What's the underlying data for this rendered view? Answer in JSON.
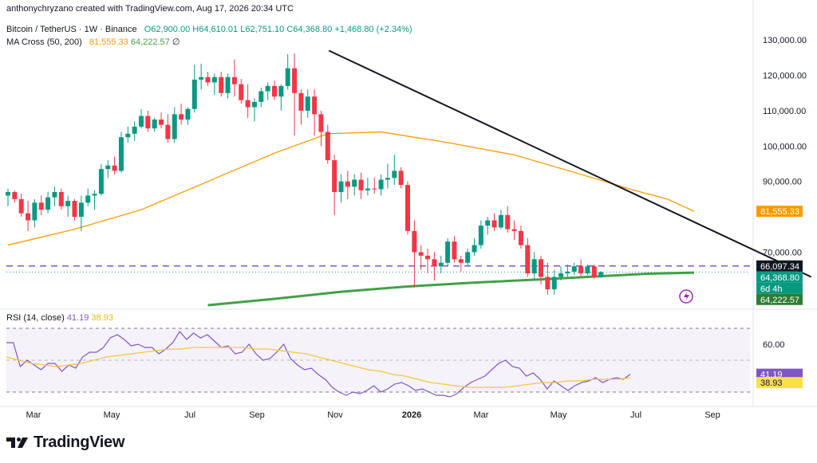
{
  "author": "anthonychryzano created with TradingView.com, Aug 17, 2026 20:34 UTC",
  "legend": {
    "symbol": "Bitcoin / TetherUS · 1W · Binance",
    "ohlc": {
      "o": "O62,900.00",
      "h": "H64,610.01",
      "l": "L62,751.10",
      "c": "C64,368.80",
      "chg": "+1,468.80 (+2.34%)"
    },
    "ma_title": "MA Cross (50, 200)",
    "ma_fast": "81,555.33",
    "ma_slow": "64,222.57",
    "ma_extra": "∅"
  },
  "rsi_legend": {
    "title": "RSI (14, close)",
    "value": "41.19",
    "ma": "38.93"
  },
  "price_axis": {
    "ticks": [
      "130,000.00",
      "120,000.00",
      "110,000.00",
      "100,000.00",
      "90,000.00",
      "70,000.00"
    ],
    "tick_values": [
      130000,
      120000,
      110000,
      100000,
      90000,
      70000
    ],
    "tags": [
      {
        "label": "81,555.33",
        "value": 81555.33,
        "color": "#ff9800"
      },
      {
        "label": "66,097.34",
        "value": 66097.34,
        "color": "#131722"
      },
      {
        "label": "64,368.80",
        "value": 64368.8,
        "color": "#089981"
      },
      {
        "label": "6d 4h",
        "value": 64368.8,
        "color": "#089981",
        "sub": true
      },
      {
        "label": "64,222.57",
        "value": 64222.57,
        "color": "#2e7d32"
      }
    ]
  },
  "rsi_axis": {
    "ticks": [
      "60.00"
    ],
    "tick_values": [
      60
    ],
    "tags": [
      {
        "label": "41.19",
        "value": 41.19,
        "color": "#7e57c2"
      },
      {
        "label": "38.93",
        "value": 38.93,
        "color": "#f9e04b",
        "dark_text": true
      }
    ]
  },
  "time_axis": [
    "Mar",
    "May",
    "Jul",
    "Sep",
    "Nov",
    "2026",
    "Mar",
    "May",
    "Jul",
    "Sep"
  ],
  "brand": "TradingView",
  "colors": {
    "up": "#089981",
    "down": "#f23645",
    "ma50": "#ff9800",
    "ma200": "#43a047",
    "rsi": "#7e57c2",
    "rsi_ma": "#f5c542",
    "trendline": "#131722",
    "hline": "#7e57c2"
  },
  "chart_data": {
    "type": "candlestick",
    "title": "Bitcoin / TetherUS · 1W · Binance",
    "ylim": [
      55000,
      135000
    ],
    "horizontal_line": 66097.34,
    "trendline": {
      "from": {
        "index": 49,
        "price": 127000
      },
      "to": {
        "index": 122,
        "price": 63000
      }
    },
    "candles": [
      [
        86000,
        88000,
        83000,
        87000
      ],
      [
        87000,
        87500,
        84000,
        85000
      ],
      [
        85000,
        86500,
        80000,
        81000
      ],
      [
        81000,
        84500,
        76000,
        79000
      ],
      [
        79000,
        85000,
        77000,
        84000
      ],
      [
        84000,
        86000,
        80500,
        82000
      ],
      [
        82000,
        87000,
        81000,
        85500
      ],
      [
        85500,
        88500,
        83000,
        87000
      ],
      [
        87000,
        88000,
        82000,
        83000
      ],
      [
        83000,
        86000,
        80000,
        84500
      ],
      [
        84500,
        85000,
        79000,
        80000
      ],
      [
        80000,
        86000,
        76000,
        84000
      ],
      [
        84000,
        88000,
        83000,
        86000
      ],
      [
        86000,
        87500,
        82000,
        86500
      ],
      [
        86500,
        95000,
        86000,
        93500
      ],
      [
        93500,
        96000,
        91000,
        94500
      ],
      [
        94500,
        97000,
        92000,
        93000
      ],
      [
        93000,
        104000,
        92500,
        102500
      ],
      [
        102500,
        105500,
        101000,
        103500
      ],
      [
        103500,
        107000,
        101500,
        105500
      ],
      [
        105500,
        110500,
        105000,
        108500
      ],
      [
        108500,
        110000,
        104000,
        105000
      ],
      [
        105000,
        108000,
        104000,
        107500
      ],
      [
        107500,
        109500,
        105000,
        106000
      ],
      [
        106000,
        109000,
        101000,
        102000
      ],
      [
        102000,
        111000,
        101000,
        109000
      ],
      [
        109000,
        112000,
        106000,
        107500
      ],
      [
        107500,
        111000,
        106000,
        110500
      ],
      [
        110500,
        123000,
        109500,
        118800
      ],
      [
        118800,
        123300,
        116000,
        119500
      ],
      [
        119500,
        121000,
        117000,
        118000
      ],
      [
        118000,
        120500,
        114500,
        119500
      ],
      [
        119500,
        121000,
        114000,
        115000
      ],
      [
        115000,
        120500,
        113500,
        119500
      ],
      [
        119500,
        124500,
        114000,
        117500
      ],
      [
        117500,
        119000,
        112000,
        113000
      ],
      [
        113000,
        117500,
        108000,
        111000
      ],
      [
        111000,
        113500,
        107000,
        112500
      ],
      [
        112500,
        116500,
        111000,
        115500
      ],
      [
        115500,
        118000,
        113000,
        117000
      ],
      [
        117000,
        118500,
        113000,
        114000
      ],
      [
        114000,
        117500,
        110000,
        117000
      ],
      [
        117000,
        126000,
        116000,
        122000
      ],
      [
        122000,
        126200,
        103000,
        115000
      ],
      [
        115000,
        116000,
        106000,
        110000
      ],
      [
        110000,
        116000,
        108000,
        114000
      ],
      [
        114000,
        116000,
        103000,
        109000
      ],
      [
        109000,
        110000,
        100000,
        104000
      ],
      [
        104000,
        106000,
        95000,
        96000
      ],
      [
        96000,
        97500,
        80500,
        87000
      ],
      [
        87000,
        92000,
        84000,
        90000
      ],
      [
        90000,
        93000,
        85000,
        88500
      ],
      [
        88500,
        92000,
        86000,
        90500
      ],
      [
        90500,
        92500,
        85000,
        87500
      ],
      [
        87500,
        91000,
        86000,
        88000
      ],
      [
        88000,
        91000,
        86500,
        87800
      ],
      [
        87800,
        92000,
        86000,
        90500
      ],
      [
        90500,
        95000,
        88000,
        91000
      ],
      [
        91000,
        97500,
        89000,
        93000
      ],
      [
        93000,
        94000,
        88000,
        89000
      ],
      [
        89000,
        90000,
        75000,
        76000
      ],
      [
        76000,
        79000,
        60000,
        70000
      ],
      [
        70000,
        72000,
        65000,
        69000
      ],
      [
        69000,
        71000,
        64000,
        68000
      ],
      [
        68000,
        70000,
        62000,
        66000
      ],
      [
        66000,
        69000,
        64000,
        67000
      ],
      [
        67000,
        74000,
        66000,
        73000
      ],
      [
        73000,
        74500,
        67000,
        68000
      ],
      [
        68000,
        69000,
        64500,
        67000
      ],
      [
        67000,
        71000,
        66000,
        70000
      ],
      [
        70000,
        74000,
        69000,
        72000
      ],
      [
        72000,
        79000,
        71000,
        77500
      ],
      [
        77500,
        80000,
        75000,
        79000
      ],
      [
        79000,
        81000,
        76000,
        77000
      ],
      [
        77000,
        82000,
        76500,
        80500
      ],
      [
        80500,
        83000,
        75500,
        76500
      ],
      [
        76500,
        79000,
        73500,
        76000
      ],
      [
        76000,
        77500,
        71000,
        72000
      ],
      [
        72000,
        74000,
        63000,
        64000
      ],
      [
        64000,
        70000,
        62000,
        68000
      ],
      [
        68000,
        69000,
        61000,
        63000
      ],
      [
        63000,
        67000,
        58000,
        59500
      ],
      [
        59500,
        65000,
        58000,
        63000
      ],
      [
        63000,
        66000,
        62000,
        64000
      ],
      [
        64000,
        66500,
        63000,
        64500
      ],
      [
        64500,
        67000,
        63500,
        66000
      ],
      [
        66000,
        68000,
        63000,
        64000
      ],
      [
        64000,
        66500,
        63500,
        66000
      ],
      [
        66000,
        66500,
        62500,
        62900
      ],
      [
        62900,
        64610.01,
        62751.1,
        64368.8
      ]
    ],
    "ma50": [
      [
        0,
        72000
      ],
      [
        10,
        76500
      ],
      [
        20,
        82000
      ],
      [
        30,
        90000
      ],
      [
        40,
        98000
      ],
      [
        48,
        103500
      ],
      [
        56,
        104000
      ],
      [
        66,
        101000
      ],
      [
        76,
        97500
      ],
      [
        86,
        92000
      ],
      [
        94,
        87500
      ],
      [
        99,
        85000
      ],
      [
        103,
        81555.33
      ]
    ],
    "ma200": [
      [
        30,
        55000
      ],
      [
        40,
        56800
      ],
      [
        50,
        58800
      ],
      [
        60,
        60300
      ],
      [
        70,
        61400
      ],
      [
        80,
        62300
      ],
      [
        90,
        63300
      ],
      [
        96,
        63900
      ],
      [
        103,
        64222.57
      ]
    ],
    "rsi": {
      "range": [
        22,
        78
      ],
      "values": [
        61,
        61,
        46,
        50,
        47,
        44,
        48,
        48,
        43,
        47,
        45,
        52,
        55,
        55,
        58,
        64,
        66,
        63,
        59,
        60,
        58,
        58,
        54,
        57,
        61,
        68,
        63,
        67,
        64,
        66,
        62,
        58,
        59,
        54,
        55,
        60,
        54,
        50,
        51,
        55,
        60,
        51,
        47,
        44,
        45,
        41,
        38,
        33,
        30,
        28,
        30,
        29,
        31,
        34,
        30,
        32,
        35,
        36,
        34,
        31,
        32,
        30,
        28,
        28,
        27,
        29,
        33,
        36,
        38,
        40,
        44,
        48,
        50,
        46,
        45,
        40,
        42,
        38,
        32,
        37,
        34,
        31,
        34,
        36,
        37,
        39,
        36,
        38,
        39,
        38,
        41.19
      ],
      "ma_values": [
        52,
        50,
        48,
        47,
        46,
        47,
        48,
        50,
        52,
        53,
        54,
        55,
        56,
        57,
        57,
        58,
        58,
        58,
        58,
        58,
        57,
        57,
        56,
        55,
        54,
        52,
        50,
        48,
        46,
        44,
        43,
        41,
        40,
        38,
        36,
        35,
        34,
        33,
        33,
        33,
        33,
        34,
        35,
        36,
        36,
        37,
        37,
        38,
        38,
        38,
        38.93
      ],
      "upper": 70,
      "lower": 30
    }
  }
}
